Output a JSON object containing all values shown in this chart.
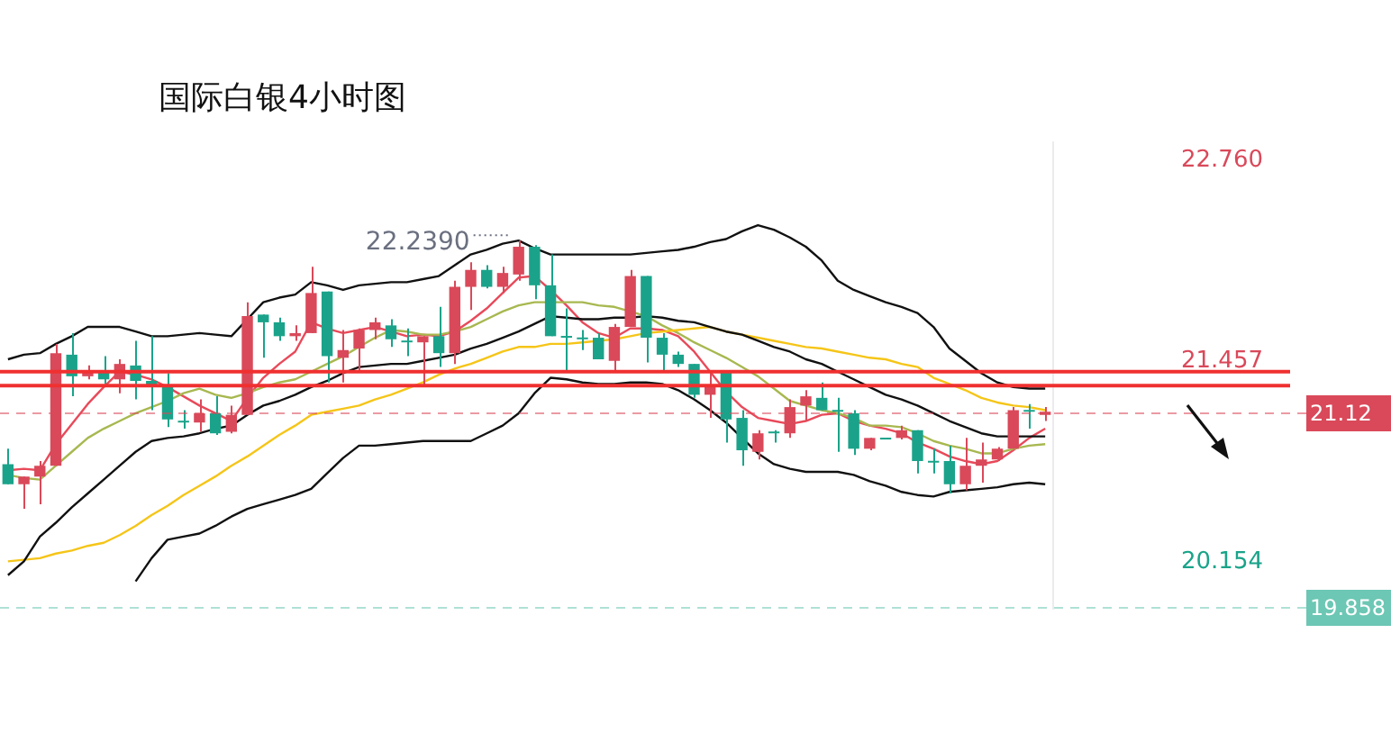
{
  "chart_data": {
    "type": "candlestick",
    "title": "国际白银4小时图",
    "categories": [
      null,
      null,
      null,
      null,
      null,
      null,
      null,
      null,
      null,
      null,
      null,
      null,
      null,
      null,
      null,
      null,
      null,
      null,
      null,
      null,
      null,
      null,
      null,
      null,
      null,
      null,
      null,
      null,
      null,
      null,
      null,
      null,
      null,
      null,
      null,
      null,
      null,
      null,
      null,
      null,
      null,
      null,
      null,
      null,
      null,
      null,
      null,
      null,
      null,
      null,
      null,
      null,
      null,
      null,
      null,
      null,
      null,
      null,
      null,
      null,
      null,
      null,
      null,
      null,
      null,
      null
    ],
    "ohlc": [
      [
        20.79,
        20.89,
        20.66,
        20.66
      ],
      [
        20.66,
        20.71,
        20.5,
        20.71
      ],
      [
        20.71,
        20.81,
        20.53,
        20.78
      ],
      [
        20.78,
        21.57,
        20.78,
        21.51
      ],
      [
        21.5,
        21.64,
        21.23,
        21.36
      ],
      [
        21.36,
        21.43,
        21.34,
        21.4
      ],
      [
        21.4,
        21.49,
        21.31,
        21.34
      ],
      [
        21.34,
        21.47,
        21.25,
        21.44
      ],
      [
        21.43,
        21.59,
        21.21,
        21.33
      ],
      [
        21.33,
        21.62,
        21.14,
        21.29
      ],
      [
        21.29,
        21.38,
        21.03,
        21.08
      ],
      [
        21.07,
        21.14,
        21.02,
        21.06
      ],
      [
        21.06,
        21.21,
        21.0,
        21.12
      ],
      [
        21.12,
        21.23,
        20.98,
        20.99
      ],
      [
        21.0,
        21.17,
        20.99,
        21.11
      ],
      [
        21.11,
        21.84,
        21.11,
        21.75
      ],
      [
        21.76,
        21.76,
        21.48,
        21.71
      ],
      [
        21.71,
        21.74,
        21.59,
        21.62
      ],
      [
        21.62,
        21.69,
        21.59,
        21.64
      ],
      [
        21.64,
        22.07,
        21.64,
        21.9
      ],
      [
        21.91,
        21.91,
        21.32,
        21.49
      ],
      [
        21.48,
        21.66,
        21.32,
        21.53
      ],
      [
        21.54,
        21.67,
        21.39,
        21.66
      ],
      [
        21.66,
        21.74,
        21.6,
        21.71
      ],
      [
        21.69,
        21.73,
        21.55,
        21.6
      ],
      [
        21.59,
        21.67,
        21.49,
        21.58
      ],
      [
        21.58,
        21.62,
        21.3,
        21.62
      ],
      [
        21.62,
        21.81,
        21.42,
        21.51
      ],
      [
        21.51,
        21.98,
        21.44,
        21.94
      ],
      [
        21.94,
        22.1,
        21.79,
        22.05
      ],
      [
        22.05,
        22.08,
        21.93,
        21.94
      ],
      [
        21.94,
        22.07,
        21.9,
        22.03
      ],
      [
        22.02,
        22.239,
        21.98,
        22.2
      ],
      [
        22.2,
        22.21,
        21.86,
        21.95
      ],
      [
        21.95,
        22.15,
        21.62,
        21.62
      ],
      [
        21.62,
        21.8,
        21.39,
        21.61
      ],
      [
        21.61,
        21.66,
        21.53,
        21.6
      ],
      [
        21.61,
        21.64,
        21.47,
        21.47
      ],
      [
        21.46,
        21.7,
        21.39,
        21.68
      ],
      [
        21.68,
        22.05,
        21.68,
        22.01
      ],
      [
        22.01,
        22.01,
        21.45,
        21.61
      ],
      [
        21.61,
        21.64,
        21.39,
        21.5
      ],
      [
        21.5,
        21.52,
        21.42,
        21.44
      ],
      [
        21.44,
        21.44,
        21.22,
        21.24
      ],
      [
        21.24,
        21.39,
        21.09,
        21.29
      ],
      [
        21.39,
        21.39,
        20.93,
        21.08
      ],
      [
        21.09,
        21.14,
        20.78,
        20.88
      ],
      [
        20.87,
        21.01,
        20.82,
        20.99
      ],
      [
        21.0,
        21.01,
        20.93,
        20.99
      ],
      [
        20.99,
        21.21,
        20.96,
        21.16
      ],
      [
        21.17,
        21.27,
        21.07,
        21.23
      ],
      [
        21.22,
        21.32,
        21.14,
        21.14
      ],
      [
        21.14,
        21.22,
        20.87,
        21.13
      ],
      [
        21.12,
        21.14,
        20.85,
        20.89
      ],
      [
        20.89,
        20.96,
        20.88,
        20.96
      ],
      [
        20.96,
        20.96,
        20.95,
        20.95
      ],
      [
        20.96,
        21.04,
        20.95,
        21.01
      ],
      [
        21.01,
        21.01,
        20.73,
        20.81
      ],
      [
        20.81,
        20.89,
        20.73,
        20.8
      ],
      [
        20.81,
        20.91,
        20.6,
        20.66
      ],
      [
        20.66,
        20.96,
        20.62,
        20.78
      ],
      [
        20.78,
        20.93,
        20.67,
        20.82
      ],
      [
        20.82,
        20.9,
        20.81,
        20.89
      ],
      [
        20.89,
        21.16,
        20.89,
        21.14
      ],
      [
        21.14,
        21.18,
        21.02,
        21.13
      ],
      [
        21.11,
        21.16,
        21.07,
        21.13
      ]
    ],
    "colors": [
      "#1aa38a",
      "#d9495a",
      "#d9495a",
      "#d9495a",
      "#1aa38a",
      "#d9495a",
      "#1aa38a",
      "#d9495a",
      "#1aa38a",
      "#1aa38a",
      "#1aa38a",
      "#1aa38a",
      "#d9495a",
      "#1aa38a",
      "#d9495a",
      "#d9495a",
      "#1aa38a",
      "#1aa38a",
      "#d9495a",
      "#d9495a",
      "#1aa38a",
      "#d9495a",
      "#d9495a",
      "#d9495a",
      "#1aa38a",
      "#1aa38a",
      "#d9495a",
      "#1aa38a",
      "#d9495a",
      "#d9495a",
      "#1aa38a",
      "#d9495a",
      "#d9495a",
      "#1aa38a",
      "#1aa38a",
      "#1aa38a",
      "#1aa38a",
      "#1aa38a",
      "#d9495a",
      "#d9495a",
      "#1aa38a",
      "#1aa38a",
      "#1aa38a",
      "#1aa38a",
      "#d9495a",
      "#1aa38a",
      "#1aa38a",
      "#d9495a",
      "#1aa38a",
      "#d9495a",
      "#d9495a",
      "#1aa38a",
      "#1aa38a",
      "#1aa38a",
      "#d9495a",
      "#1aa38a",
      "#d9495a",
      "#1aa38a",
      "#1aa38a",
      "#1aa38a",
      "#d9495a",
      "#d9495a",
      "#d9495a",
      "#d9495a",
      "#1aa38a",
      "#d9495a"
    ],
    "series": [
      {
        "type": "line",
        "color": "#111111",
        "values": [
          21.47,
          21.5,
          21.51,
          21.57,
          21.62,
          21.68,
          21.68,
          21.68,
          21.65,
          21.62,
          21.62,
          21.63,
          21.64,
          21.63,
          21.62,
          21.73,
          21.84,
          21.87,
          21.89,
          21.97,
          21.95,
          21.92,
          21.95,
          21.96,
          21.97,
          21.97,
          21.99,
          22.01,
          22.08,
          22.15,
          22.18,
          22.22,
          22.24,
          22.19,
          22.15,
          22.15,
          22.15,
          22.15,
          22.15,
          22.15,
          22.16,
          22.17,
          22.18,
          22.2,
          22.23,
          22.25,
          22.3,
          22.34,
          22.31,
          22.26,
          22.2,
          22.11,
          21.98,
          21.92,
          21.88,
          21.84,
          21.81,
          21.77,
          21.68,
          21.54,
          21.46,
          21.38,
          21.32,
          21.29,
          21.28,
          21.28
        ]
      },
      {
        "type": "line",
        "color": "#111111",
        "values": [
          20.07,
          20.16,
          20.32,
          20.41,
          20.51,
          20.6,
          20.69,
          20.78,
          20.87,
          20.94,
          20.96,
          20.97,
          20.99,
          21.02,
          21.04,
          21.11,
          21.17,
          21.2,
          21.24,
          21.29,
          21.33,
          21.38,
          21.42,
          21.43,
          21.44,
          21.44,
          21.46,
          21.48,
          21.5,
          21.54,
          21.57,
          21.61,
          21.65,
          21.7,
          21.75,
          21.74,
          21.73,
          21.73,
          21.74,
          21.74,
          21.75,
          21.74,
          21.72,
          21.71,
          21.68,
          21.65,
          21.63,
          21.59,
          21.55,
          21.52,
          21.47,
          21.44,
          21.39,
          21.34,
          21.29,
          21.24,
          21.21,
          21.17,
          21.12,
          21.07,
          21.03,
          20.99,
          20.97,
          20.97,
          20.97,
          20.97
        ]
      },
      {
        "type": "line",
        "color": "#111111",
        "values": [
          null,
          null,
          null,
          null,
          null,
          null,
          null,
          null,
          20.03,
          20.18,
          20.3,
          20.32,
          20.34,
          20.39,
          20.45,
          20.5,
          20.53,
          20.56,
          20.59,
          20.63,
          20.73,
          20.83,
          20.91,
          20.91,
          20.92,
          20.93,
          20.94,
          20.94,
          20.94,
          20.94,
          20.99,
          21.04,
          21.12,
          21.25,
          21.35,
          21.34,
          21.32,
          21.31,
          21.31,
          21.32,
          21.32,
          21.31,
          21.27,
          21.21,
          21.14,
          21.06,
          20.96,
          20.86,
          20.79,
          20.76,
          20.74,
          20.74,
          20.74,
          20.72,
          20.68,
          20.65,
          20.61,
          20.59,
          20.58,
          20.61,
          20.62,
          20.63,
          20.64,
          20.66,
          20.67,
          20.66
        ]
      },
      {
        "type": "line",
        "color": "#f5c518",
        "values": [
          20.16,
          20.17,
          20.18,
          20.21,
          20.23,
          20.26,
          20.28,
          20.33,
          20.39,
          20.46,
          20.52,
          20.59,
          20.65,
          20.71,
          20.78,
          20.84,
          20.91,
          20.98,
          21.04,
          21.11,
          21.13,
          21.15,
          21.17,
          21.21,
          21.24,
          21.28,
          21.32,
          21.37,
          21.41,
          21.44,
          21.48,
          21.52,
          21.55,
          21.55,
          21.57,
          21.57,
          21.58,
          21.59,
          21.6,
          21.62,
          21.64,
          21.65,
          21.66,
          21.67,
          21.68,
          21.65,
          21.63,
          21.61,
          21.59,
          21.57,
          21.55,
          21.54,
          21.52,
          21.5,
          21.48,
          21.47,
          21.44,
          21.42,
          21.35,
          21.31,
          21.27,
          21.22,
          21.19,
          21.17,
          21.16,
          21.14
        ]
      },
      {
        "type": "line",
        "color": "#a8b850",
        "values": [
          20.72,
          20.7,
          20.69,
          20.78,
          20.87,
          20.96,
          21.02,
          21.07,
          21.12,
          21.16,
          21.2,
          21.25,
          21.28,
          21.24,
          21.22,
          21.25,
          21.29,
          21.32,
          21.34,
          21.39,
          21.44,
          21.49,
          21.55,
          21.61,
          21.66,
          21.65,
          21.63,
          21.63,
          21.65,
          21.68,
          21.73,
          21.78,
          21.82,
          21.84,
          21.84,
          21.84,
          21.84,
          21.82,
          21.81,
          21.78,
          21.75,
          21.69,
          21.64,
          21.58,
          21.53,
          21.48,
          21.42,
          21.36,
          21.28,
          21.2,
          21.17,
          21.14,
          21.12,
          21.09,
          21.04,
          21.04,
          21.03,
          20.99,
          20.94,
          20.91,
          20.89,
          20.86,
          20.86,
          20.89,
          20.91,
          20.92
        ]
      },
      {
        "type": "line",
        "color": "#e84a5a",
        "values": [
          20.75,
          20.76,
          20.75,
          20.92,
          21.05,
          21.18,
          21.29,
          21.39,
          21.37,
          21.34,
          21.29,
          21.23,
          21.17,
          21.12,
          21.07,
          21.22,
          21.35,
          21.44,
          21.52,
          21.71,
          21.67,
          21.64,
          21.66,
          21.68,
          21.65,
          21.62,
          21.63,
          21.62,
          21.65,
          21.72,
          21.8,
          21.9,
          22.0,
          22.01,
          21.92,
          21.82,
          21.71,
          21.64,
          21.61,
          21.67,
          21.67,
          21.66,
          21.62,
          21.52,
          21.39,
          21.26,
          21.16,
          21.09,
          21.07,
          21.05,
          21.07,
          21.11,
          21.12,
          21.07,
          21.04,
          21.02,
          20.99,
          20.93,
          20.89,
          20.84,
          20.81,
          20.79,
          20.81,
          20.88,
          20.96,
          21.02
        ]
      }
    ],
    "ylim": [
      19.85,
      22.88
    ],
    "yticks": [
      {
        "value": 22.76,
        "label": "22.760"
      },
      21.457,
      20.154
    ],
    "tick_labels": "y",
    "grid": false,
    "legend": false,
    "line_style": "solid",
    "ref_lines": [
      {
        "axis": "y",
        "value": 21.39,
        "color": "#f03030",
        "line_style": "solid"
      },
      {
        "axis": "y",
        "value": 21.3,
        "color": "#f03030",
        "line_style": "solid"
      },
      {
        "axis": "y",
        "value": 21.12,
        "label": "21.12",
        "color": "#d9495a",
        "line_style": "dashed"
      },
      {
        "axis": "y",
        "value": 19.858,
        "label": "19.858",
        "color": "#6cc7b4",
        "line_style": "dashed"
      }
    ],
    "annotations": [
      "22.2390"
    ]
  }
}
